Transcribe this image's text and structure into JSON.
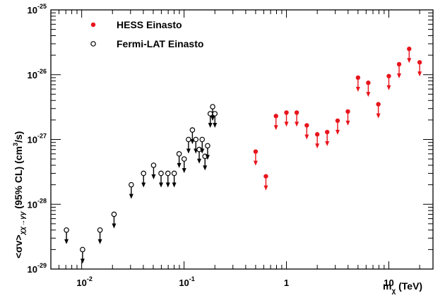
{
  "chart_data": {
    "type": "scatter",
    "title": "",
    "x_scale": "log",
    "y_scale": "log",
    "xlim": [
      0.005,
      27
    ],
    "ylim": [
      1e-29,
      1e-25
    ],
    "grid": false,
    "legend_placement": "top-left",
    "x_ticks": [
      {
        "value": 0.01,
        "base": "10",
        "exp": "-2"
      },
      {
        "value": 0.1,
        "base": "10",
        "exp": "-1"
      },
      {
        "value": 1,
        "base": "1",
        "exp": ""
      },
      {
        "value": 10,
        "base": "10",
        "exp": ""
      }
    ],
    "y_ticks": [
      {
        "value": 1e-29,
        "base": "10",
        "exp": "-29"
      },
      {
        "value": 1e-28,
        "base": "10",
        "exp": "-28"
      },
      {
        "value": 1e-27,
        "base": "10",
        "exp": "-27"
      },
      {
        "value": 1e-26,
        "base": "10",
        "exp": "-26"
      },
      {
        "value": 1e-25,
        "base": "10",
        "exp": "-25"
      }
    ],
    "xlabel": {
      "main": "m",
      "sub": "χ",
      "unit": " (TeV)"
    },
    "ylabel": {
      "pre": "<σv>",
      "sub": "χχ→γγ",
      "post": " (95% CL) (cm",
      "sup": "3",
      "end": "/s)"
    },
    "series": [
      {
        "name": "HESS Einasto",
        "marker": "filled-circle",
        "color": "#e8141c",
        "upper_limits": true,
        "x": [
          0.5,
          0.63,
          0.79,
          1.0,
          1.26,
          1.58,
          2.0,
          2.5,
          3.16,
          3.98,
          5.0,
          6.3,
          7.9,
          10.0,
          12.6,
          15.8,
          20.0
        ],
        "y": [
          6.5e-28,
          2.7e-28,
          2.3e-27,
          2.6e-27,
          2.6e-27,
          1.65e-27,
          1.2e-27,
          1.3e-27,
          1.95e-27,
          2.7e-27,
          9e-27,
          7.5e-27,
          3.5e-27,
          9.5e-27,
          1.45e-26,
          2.5e-26,
          1.55e-26
        ]
      },
      {
        "name": "Fermi-LAT Einasto",
        "marker": "open-circle",
        "color": "#000000",
        "upper_limits": true,
        "x": [
          0.0071,
          0.0102,
          0.0151,
          0.0207,
          0.0305,
          0.0402,
          0.0504,
          0.0596,
          0.0696,
          0.0801,
          0.0895,
          0.1002,
          0.1105,
          0.1206,
          0.1303,
          0.1406,
          0.1503,
          0.1601,
          0.1698,
          0.1803,
          0.1902,
          0.2
        ],
        "y": [
          4e-29,
          2e-29,
          4e-29,
          7e-29,
          2e-28,
          3e-28,
          4e-28,
          3e-28,
          3e-28,
          3e-28,
          6e-28,
          5e-28,
          1e-27,
          1.4e-27,
          1e-27,
          7e-28,
          1e-27,
          5.5e-28,
          8e-28,
          2.5e-27,
          3.2e-27,
          2.5e-27
        ]
      }
    ]
  }
}
